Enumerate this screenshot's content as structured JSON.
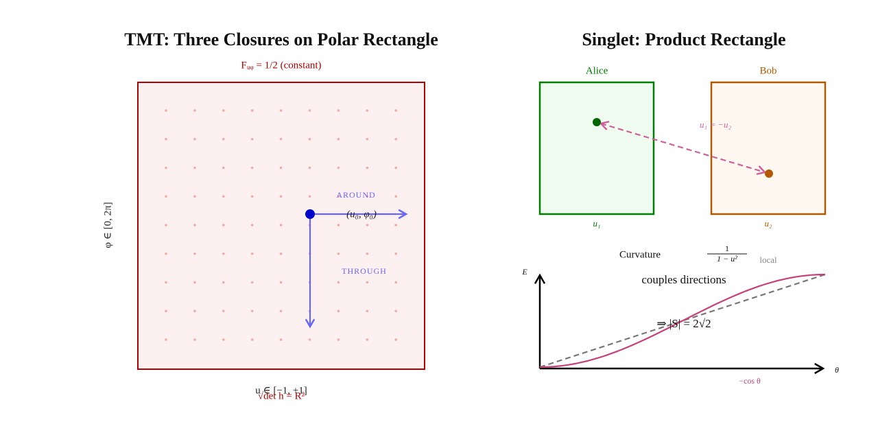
{
  "left_panel": {
    "title": "TMT: Three Closures on Polar Rectangle",
    "field_label": "Fᵤᵩ = 1/2 (constant)",
    "y_axis_label": "φ ∈ [0, 2π]",
    "x_axis_label": "u ∈ [−1, +1]",
    "det_label": "√det h = R²",
    "around_label": "AROUND",
    "through_label": "THROUGH",
    "point_label": "(u₀, φ₀)"
  },
  "right_panel": {
    "title": "Singlet: Product Rectangle",
    "alice": "Alice",
    "bob": "Bob",
    "alice_coord": "u₁",
    "bob_coord": "u₂",
    "link_label": "u₁ = −u₂",
    "curvature_text": "Curvature",
    "curvature_numerator": "1",
    "curvature_denominator": "1 − u²",
    "curvature_suffix": "local",
    "couples_text": "couples directions",
    "result": "⇒ |S| = 2√2",
    "energy_axis": "E",
    "angle_axis": "θ",
    "curve_label": "−cos θ"
  }
}
